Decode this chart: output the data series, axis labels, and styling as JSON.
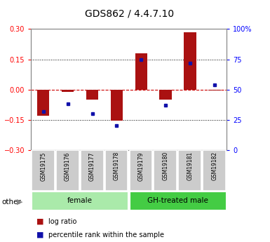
{
  "title": "GDS862 / 4.4.7.10",
  "samples": [
    "GSM19175",
    "GSM19176",
    "GSM19177",
    "GSM19178",
    "GSM19179",
    "GSM19180",
    "GSM19181",
    "GSM19182"
  ],
  "log_ratio": [
    -0.13,
    -0.012,
    -0.05,
    -0.155,
    0.18,
    -0.05,
    0.285,
    -0.005
  ],
  "percentile_rank": [
    32,
    38,
    30,
    20,
    75,
    37,
    72,
    54
  ],
  "ylim_left": [
    -0.3,
    0.3
  ],
  "ylim_right": [
    0,
    100
  ],
  "yticks_left": [
    -0.3,
    -0.15,
    0,
    0.15,
    0.3
  ],
  "yticks_right": [
    0,
    25,
    50,
    75,
    100
  ],
  "groups": [
    {
      "label": "female",
      "start": 0,
      "end": 3,
      "color": "#aaeaaa"
    },
    {
      "label": "GH-treated male",
      "start": 4,
      "end": 7,
      "color": "#44cc44"
    }
  ],
  "bar_color": "#AA1111",
  "dot_color": "#1111AA",
  "zero_line_color": "#CC0000",
  "dotted_line_color": "#000000",
  "background_color": "#ffffff",
  "plot_bg": "#ffffff",
  "sample_box_color": "#CCCCCC",
  "legend_bar_label": "log ratio",
  "legend_dot_label": "percentile rank within the sample",
  "other_label": "other",
  "title_fontsize": 10,
  "tick_fontsize": 7,
  "sample_fontsize": 5.5,
  "group_fontsize": 7.5,
  "legend_fontsize": 7
}
